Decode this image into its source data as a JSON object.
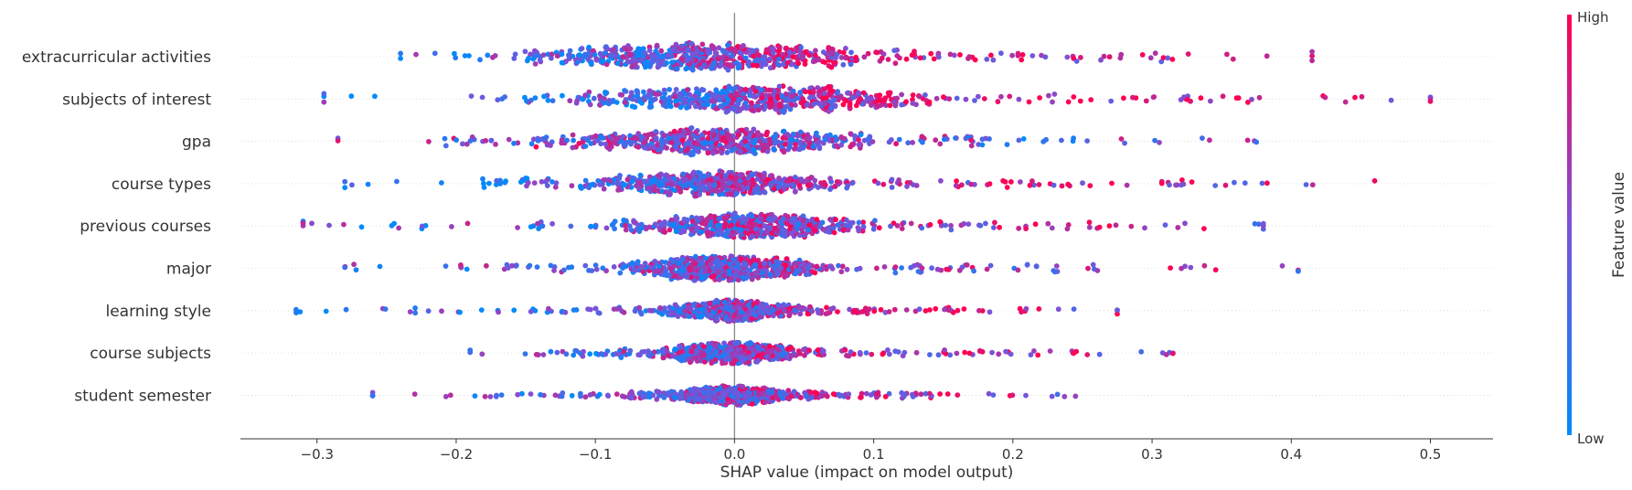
{
  "chart_data": {
    "type": "scatter",
    "subtype": "shap-beeswarm-summary",
    "xlabel": "SHAP value (impact on model output)",
    "xlim": [
      -0.355,
      0.545
    ],
    "xticks": [
      -0.3,
      -0.2,
      -0.1,
      0.0,
      0.1,
      0.2,
      0.3,
      0.4,
      0.5
    ],
    "xtick_labels": [
      "−0.3",
      "−0.2",
      "−0.1",
      "0.0",
      "0.1",
      "0.2",
      "0.3",
      "0.4",
      "0.5"
    ],
    "categories": [
      "extracurricular activities",
      "subjects of interest",
      "gpa",
      "course types",
      "previous courses",
      "major",
      "learning style",
      "course subjects",
      "student semester"
    ],
    "series": [
      {
        "name": "extracurricular activities",
        "min": -0.24,
        "max": 0.415,
        "center": -0.02,
        "spread": 0.06,
        "width": 16,
        "high_bias": 0.5
      },
      {
        "name": "subjects of interest",
        "min": -0.295,
        "max": 0.5,
        "center": 0.01,
        "spread": 0.055,
        "width": 15,
        "high_bias": 0.6
      },
      {
        "name": "gpa",
        "min": -0.285,
        "max": 0.375,
        "center": -0.015,
        "spread": 0.05,
        "width": 15,
        "high_bias": -0.1
      },
      {
        "name": "course types",
        "min": -0.28,
        "max": 0.46,
        "center": -0.015,
        "spread": 0.04,
        "width": 14,
        "high_bias": 0.5
      },
      {
        "name": "previous courses",
        "min": -0.31,
        "max": 0.38,
        "center": 0.01,
        "spread": 0.035,
        "width": 14,
        "high_bias": 0.3
      },
      {
        "name": "major",
        "min": -0.28,
        "max": 0.405,
        "center": -0.005,
        "spread": 0.03,
        "width": 14,
        "high_bias": 0.2
      },
      {
        "name": "learning style",
        "min": -0.315,
        "max": 0.275,
        "center": 0.0,
        "spread": 0.025,
        "width": 12,
        "high_bias": 0.5
      },
      {
        "name": "course subjects",
        "min": -0.19,
        "max": 0.315,
        "center": -0.002,
        "spread": 0.025,
        "width": 12,
        "high_bias": 0.4
      },
      {
        "name": "student semester",
        "min": -0.26,
        "max": 0.245,
        "center": -0.005,
        "spread": 0.025,
        "width": 11,
        "high_bias": 0.4
      }
    ],
    "colorbar": {
      "label": "Feature value",
      "high_label": "High",
      "low_label": "Low",
      "high_color": "#ff0052",
      "mid_color": "#7c52d9",
      "low_color": "#008bfb"
    },
    "zero_line": true,
    "grid": false
  }
}
